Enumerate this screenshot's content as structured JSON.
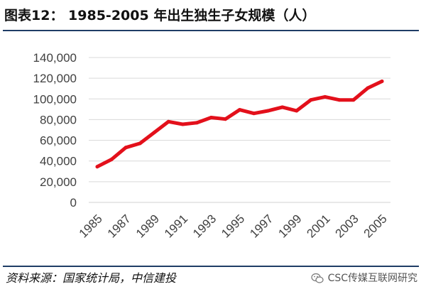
{
  "header": {
    "title": "图表12：  1985-2005 年出生独生子女规模（人）"
  },
  "footer": {
    "source": "资料来源：国家统计局，中信建投",
    "watermark": "CSC传媒互联网研究",
    "watermark_icon": "wechat-icon"
  },
  "colors": {
    "line": "#e3101b",
    "grid": "#d9d9d9",
    "rule": "#1f3d66"
  },
  "chart_data": {
    "type": "line",
    "title": "1985-2005 年出生独生子女规模（人）",
    "xlabel": "",
    "ylabel": "",
    "ylim": [
      0,
      140000
    ],
    "yticks": [
      0,
      20000,
      40000,
      60000,
      80000,
      100000,
      120000,
      140000
    ],
    "ytick_labels": [
      "0",
      "20,000",
      "40,000",
      "60,000",
      "80,000",
      "100,000",
      "120,000",
      "140,000"
    ],
    "x": [
      1985,
      1986,
      1987,
      1988,
      1989,
      1990,
      1991,
      1992,
      1993,
      1994,
      1995,
      1996,
      1997,
      1998,
      1999,
      2000,
      2001,
      2002,
      2003,
      2004,
      2005
    ],
    "xtick_labels": [
      "1985",
      "1987",
      "1989",
      "1991",
      "1993",
      "1995",
      "1997",
      "1999",
      "2001",
      "2003",
      "2005"
    ],
    "grid": true,
    "legend": "none",
    "series": [
      {
        "name": "出生独生子女规模",
        "values": [
          34500,
          41500,
          53000,
          57000,
          67500,
          78000,
          75500,
          77000,
          82000,
          80500,
          89500,
          86000,
          88500,
          92000,
          88500,
          99000,
          102000,
          99000,
          99000,
          110500,
          117000
        ]
      }
    ]
  }
}
